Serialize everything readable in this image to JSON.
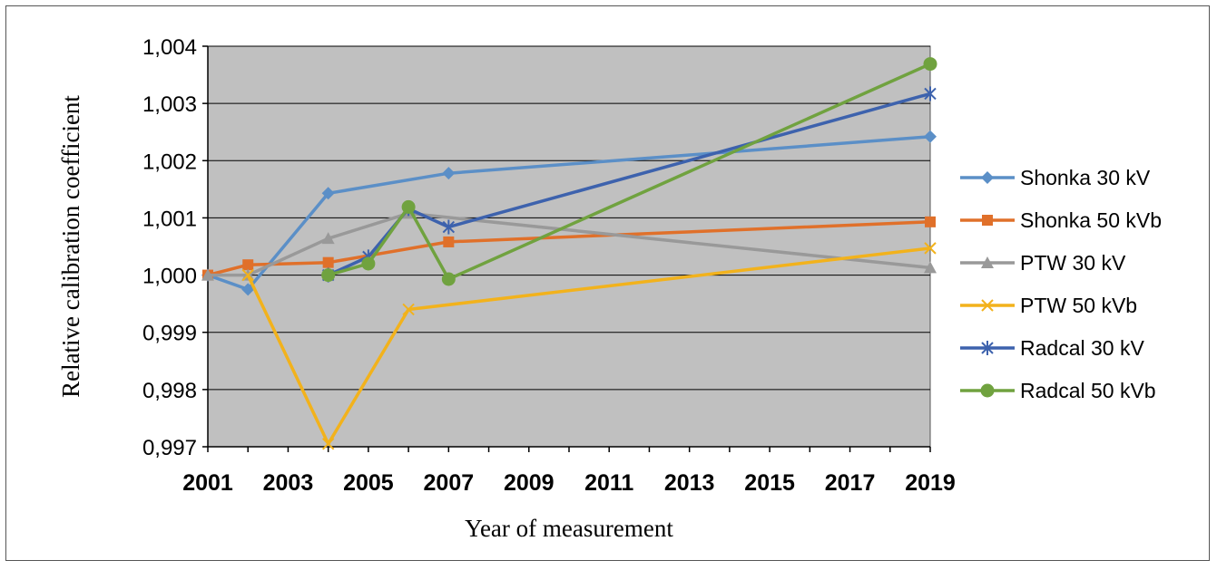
{
  "chart_data": {
    "type": "line",
    "title": "",
    "xlabel": "Year of measurement",
    "ylabel": "Relative calibration coefficient",
    "xlim": [
      2001,
      2019
    ],
    "ylim": [
      0.997,
      1.004
    ],
    "x_ticks": [
      2001,
      2003,
      2005,
      2007,
      2009,
      2011,
      2013,
      2015,
      2017,
      2019
    ],
    "x_tick_labels": [
      "2001",
      "2003",
      "2005",
      "2007",
      "2009",
      "2011",
      "2013",
      "2015",
      "2017",
      "2019"
    ],
    "y_ticks": [
      0.997,
      0.998,
      0.999,
      1.0,
      1.001,
      1.002,
      1.003,
      1.004
    ],
    "y_tick_labels": [
      "0,997",
      "0,998",
      "0,999",
      "1,000",
      "1,001",
      "1,002",
      "1,003",
      "1,004"
    ],
    "grid": "horizontal",
    "plot_background": "#c0c0c0",
    "legend_position": "right",
    "series": [
      {
        "name": "Shonka 30 kV",
        "color": "#5b8fc7",
        "marker": "diamond",
        "x": [
          2001,
          2002,
          2004,
          2007,
          2019
        ],
        "y": [
          1.0,
          0.99975,
          1.00143,
          1.00178,
          1.00242
        ]
      },
      {
        "name": "Shonka 50 kVb",
        "color": "#e0702a",
        "marker": "square",
        "x": [
          2001,
          2002,
          2004,
          2007,
          2019
        ],
        "y": [
          1.0,
          1.00018,
          1.00022,
          1.00058,
          1.00093
        ]
      },
      {
        "name": "PTW 30 kV",
        "color": "#999999",
        "marker": "triangle",
        "x": [
          2001,
          2002,
          2004,
          2006,
          2019
        ],
        "y": [
          1.0,
          1.0,
          1.00064,
          1.00108,
          1.00013
        ]
      },
      {
        "name": "PTW 50 kVb",
        "color": "#f2b21c",
        "marker": "x",
        "x": [
          2002,
          2004,
          2006,
          2019
        ],
        "y": [
          1.0,
          0.99705,
          0.9994,
          1.00047
        ]
      },
      {
        "name": "Radcal 30 kV",
        "color": "#3d62ad",
        "marker": "star",
        "x": [
          2004,
          2005,
          2006,
          2007,
          2019
        ],
        "y": [
          1.0,
          1.00032,
          1.00116,
          1.00084,
          1.00317
        ]
      },
      {
        "name": "Radcal 50 kVb",
        "color": "#70a23f",
        "marker": "circle",
        "x": [
          2004,
          2005,
          2006,
          2007,
          2019
        ],
        "y": [
          1.0,
          1.0002,
          1.00119,
          0.99993,
          1.00369
        ]
      }
    ]
  }
}
